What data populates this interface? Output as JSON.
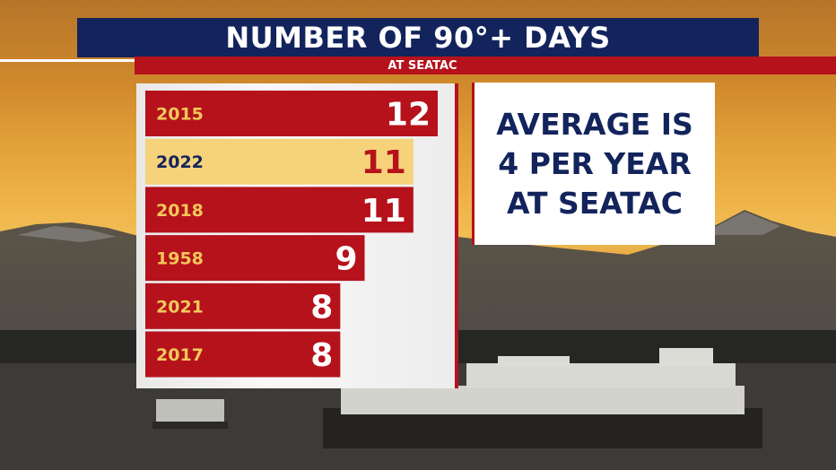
{
  "title": "NUMBER OF 90°+ DAYS",
  "subtitle": "AT SEATAC",
  "note_lines": [
    "AVERAGE IS",
    "4 PER YEAR",
    "AT SEATAC"
  ],
  "colors": {
    "title_bg": "#13245c",
    "bar_red": "#b5121b",
    "bar_highlight": "#f6d27a",
    "year_text_on_red": "#f3c85a",
    "value_text_on_red": "#ffffff",
    "text_on_highlight": "#13245c",
    "value_on_highlight": "#b5121b"
  },
  "chart_data": {
    "type": "bar",
    "orientation": "horizontal",
    "title": "NUMBER OF 90°+ DAYS",
    "subtitle": "AT SEATAC",
    "categories": [
      "2015",
      "2022",
      "2018",
      "1958",
      "2021",
      "2017"
    ],
    "values": [
      12,
      11,
      11,
      9,
      8,
      8
    ],
    "highlighted_category": "2022",
    "xlim": [
      0,
      12
    ]
  }
}
